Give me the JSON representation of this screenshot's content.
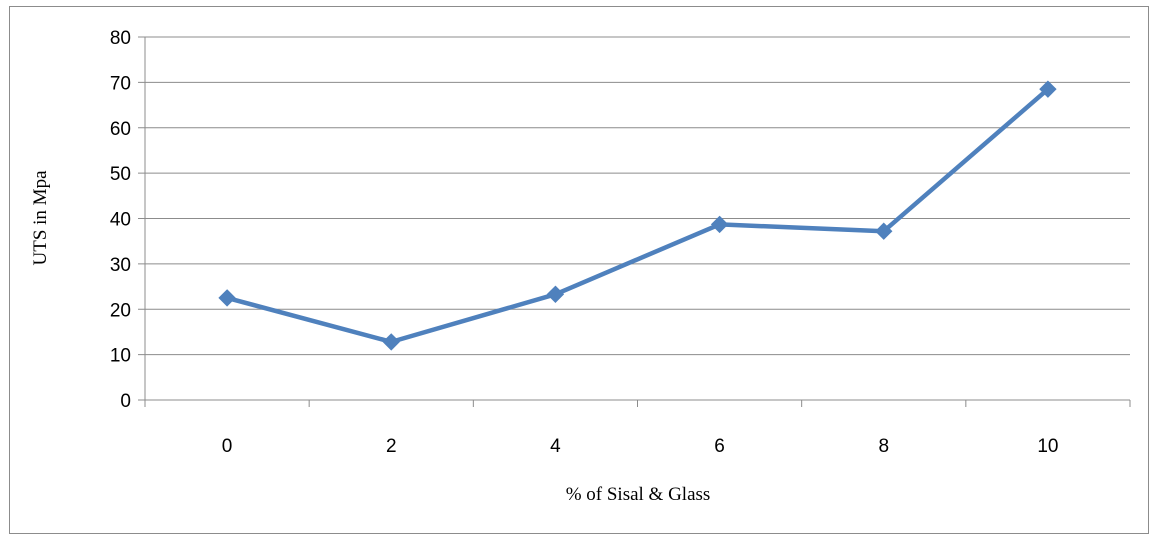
{
  "chart_data": {
    "type": "line",
    "title": "",
    "xlabel": "% of Sisal & Glass",
    "ylabel": "UTS in Mpa",
    "categories": [
      "0",
      "2",
      "4",
      "6",
      "8",
      "10"
    ],
    "series": [
      {
        "values": [
          22.5,
          12.8,
          23.3,
          38.7,
          37.2,
          68.5
        ],
        "color": "#4f81bd",
        "marker": "diamond"
      }
    ],
    "ylim": [
      0,
      80
    ],
    "yticks": [
      "0",
      "10",
      "20",
      "30",
      "40",
      "50",
      "60",
      "70",
      "80"
    ],
    "grid": true,
    "legend": "none",
    "colors": {
      "gridline": "#8c8c8c",
      "frame": "#8c8c8c"
    }
  }
}
